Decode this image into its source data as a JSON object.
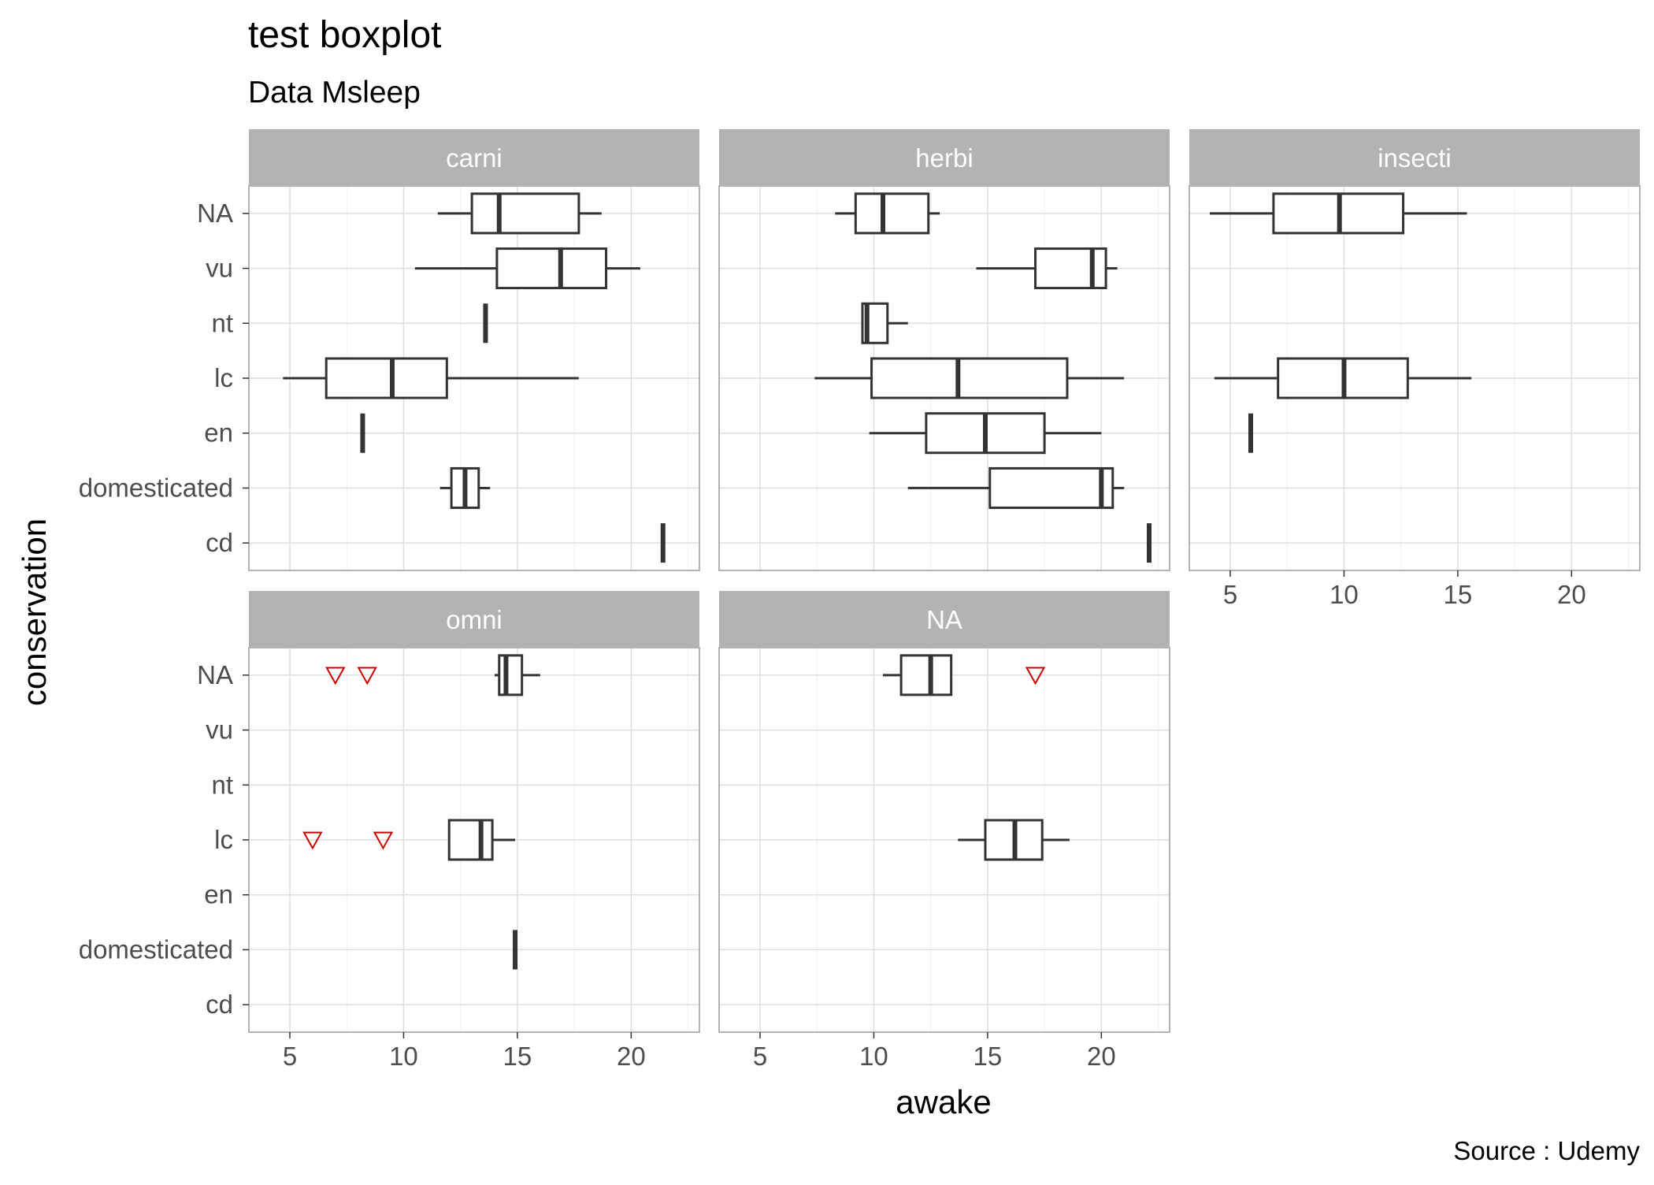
{
  "chart_data": {
    "type": "boxplot",
    "title": "test boxplot",
    "subtitle": "Data Msleep",
    "xlabel": "awake",
    "ylabel": "conservation",
    "caption": "Source : Udemy",
    "xlim": [
      3.2,
      23.0
    ],
    "xticks": [
      5,
      10,
      15,
      20
    ],
    "categories": [
      "NA",
      "vu",
      "nt",
      "lc",
      "en",
      "domesticated",
      "cd"
    ],
    "grid": true,
    "outlier_color": "#cc0000",
    "strip_color": "#b3b3b3",
    "box_color": "#333333",
    "panels": [
      {
        "label": "carni",
        "boxes": [
          {
            "category": "NA",
            "min": 11.5,
            "q1": 13.0,
            "median": 14.2,
            "q3": 17.7,
            "max": 18.7
          },
          {
            "category": "vu",
            "min": 10.5,
            "q1": 14.1,
            "median": 16.9,
            "q3": 18.9,
            "max": 20.4
          },
          {
            "category": "nt",
            "min": 13.6,
            "q1": 13.6,
            "median": 13.6,
            "q3": 13.6,
            "max": 13.6
          },
          {
            "category": "lc",
            "min": 4.7,
            "q1": 6.6,
            "median": 9.5,
            "q3": 11.9,
            "max": 17.7
          },
          {
            "category": "en",
            "min": 8.2,
            "q1": 8.2,
            "median": 8.2,
            "q3": 8.2,
            "max": 8.2
          },
          {
            "category": "domesticated",
            "min": 11.6,
            "q1": 12.1,
            "median": 12.7,
            "q3": 13.3,
            "max": 13.8
          },
          {
            "category": "cd",
            "min": 21.4,
            "q1": 21.4,
            "median": 21.4,
            "q3": 21.4,
            "max": 21.4
          }
        ],
        "outliers": []
      },
      {
        "label": "herbi",
        "boxes": [
          {
            "category": "NA",
            "min": 8.3,
            "q1": 9.2,
            "median": 10.4,
            "q3": 12.4,
            "max": 12.9
          },
          {
            "category": "vu",
            "min": 14.5,
            "q1": 17.1,
            "median": 19.6,
            "q3": 20.2,
            "max": 20.7
          },
          {
            "category": "nt",
            "min": 9.5,
            "q1": 9.5,
            "median": 9.7,
            "q3": 10.6,
            "max": 11.5
          },
          {
            "category": "lc",
            "min": 7.4,
            "q1": 9.9,
            "median": 13.7,
            "q3": 18.5,
            "max": 21.0
          },
          {
            "category": "en",
            "min": 9.8,
            "q1": 12.3,
            "median": 14.9,
            "q3": 17.5,
            "max": 20.0
          },
          {
            "category": "domesticated",
            "min": 11.5,
            "q1": 15.1,
            "median": 20.0,
            "q3": 20.5,
            "max": 21.0
          },
          {
            "category": "cd",
            "min": 22.1,
            "q1": 22.1,
            "median": 22.1,
            "q3": 22.1,
            "max": 22.1
          }
        ],
        "outliers": []
      },
      {
        "label": "insecti",
        "boxes": [
          {
            "category": "NA",
            "min": 4.1,
            "q1": 6.9,
            "median": 9.8,
            "q3": 12.6,
            "max": 15.4
          },
          {
            "category": "lc",
            "min": 4.3,
            "q1": 7.1,
            "median": 10.0,
            "q3": 12.8,
            "max": 15.6
          },
          {
            "category": "en",
            "min": 5.9,
            "q1": 5.9,
            "median": 5.9,
            "q3": 5.9,
            "max": 5.9
          }
        ],
        "outliers": []
      },
      {
        "label": "omni",
        "boxes": [
          {
            "category": "NA",
            "min": 14.0,
            "q1": 14.2,
            "median": 14.5,
            "q3": 15.2,
            "max": 16.0
          },
          {
            "category": "lc",
            "min": 12.0,
            "q1": 12.0,
            "median": 13.4,
            "q3": 13.9,
            "max": 14.9
          },
          {
            "category": "domesticated",
            "min": 14.9,
            "q1": 14.9,
            "median": 14.9,
            "q3": 14.9,
            "max": 14.9
          }
        ],
        "outliers": [
          {
            "category": "NA",
            "value": 7.0
          },
          {
            "category": "NA",
            "value": 8.4
          },
          {
            "category": "lc",
            "value": 6.0
          },
          {
            "category": "lc",
            "value": 9.1
          }
        ]
      },
      {
        "label": "NA",
        "boxes": [
          {
            "category": "NA",
            "min": 10.4,
            "q1": 11.2,
            "median": 12.5,
            "q3": 13.4,
            "max": 13.4
          },
          {
            "category": "lc",
            "min": 13.7,
            "q1": 14.9,
            "median": 16.2,
            "q3": 17.4,
            "max": 18.6
          }
        ],
        "outliers": [
          {
            "category": "NA",
            "value": 17.1
          }
        ]
      }
    ]
  }
}
